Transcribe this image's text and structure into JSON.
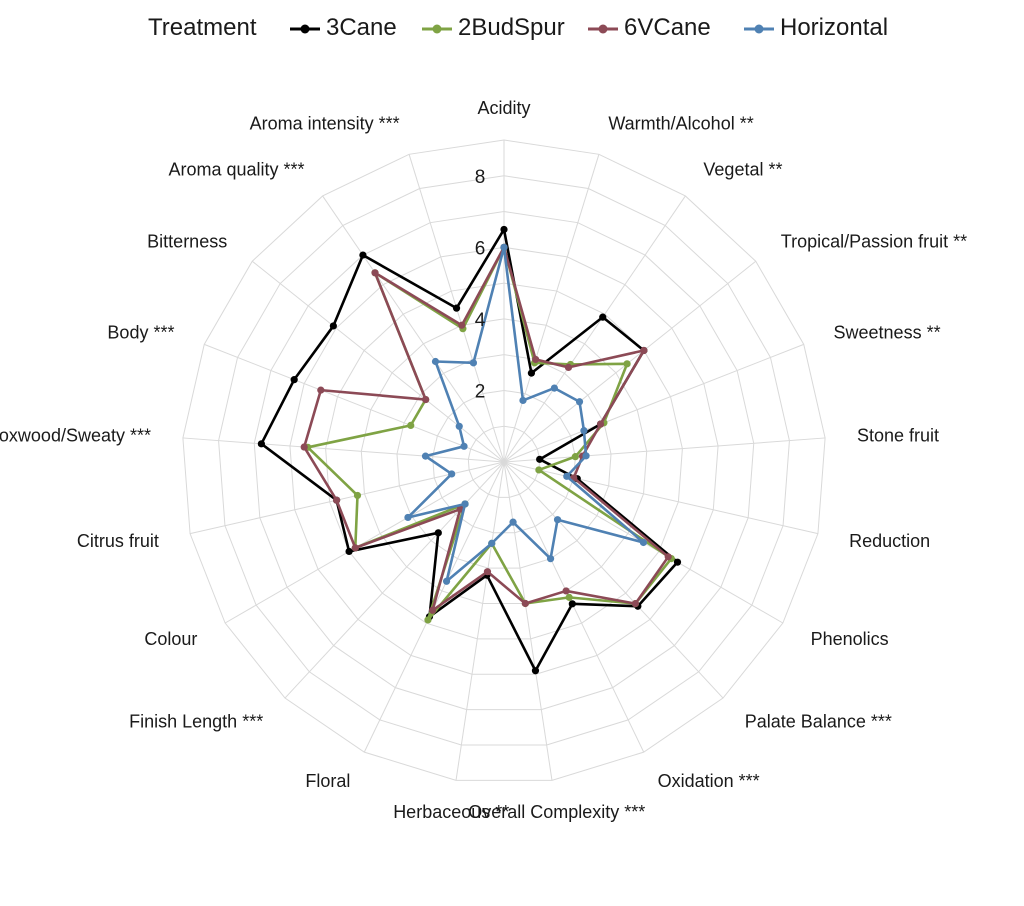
{
  "chart_data": {
    "type": "radar",
    "legend_title": "Treatment",
    "legend_position": "top",
    "axes": [
      "Acidity",
      "Warmth/Alcohol **",
      "Vegetal **",
      "Tropical/Passion fruit **",
      "Sweetness **",
      "Stone fruit",
      "Reduction",
      "Phenolics",
      "Palate Balance ***",
      "Oxidation ***",
      "Overall Complexity ***",
      "Herbaceous **",
      "Floral",
      "Finish Length ***",
      "Colour",
      "Citrus fruit",
      "Boxwood/Sweaty ***",
      "Body ***",
      "Bitterness",
      "Aroma quality ***",
      "Aroma intensity ***"
    ],
    "rlim": [
      0,
      9
    ],
    "ticks": [
      2,
      4,
      6,
      8
    ],
    "grid": true,
    "series": [
      {
        "name": "3Cane",
        "color": "#000000",
        "values": [
          6.5,
          2.6,
          4.9,
          5.0,
          2.9,
          1.0,
          2.1,
          5.6,
          5.5,
          4.4,
          5.9,
          3.2,
          4.8,
          2.7,
          5.0,
          4.8,
          6.8,
          6.3,
          6.1,
          7.0,
          4.5
        ]
      },
      {
        "name": "2BudSpur",
        "color": "#7FA344",
        "values": [
          6.0,
          2.9,
          3.3,
          4.4,
          3.0,
          2.0,
          1.0,
          5.4,
          5.4,
          4.2,
          4.0,
          2.3,
          4.9,
          1.6,
          4.8,
          4.2,
          5.5,
          2.8,
          2.8,
          6.4,
          3.9
        ]
      },
      {
        "name": "6VCane",
        "color": "#8C4A56",
        "values": [
          6.0,
          3.0,
          3.2,
          5.0,
          2.9,
          2.2,
          2.0,
          5.3,
          5.4,
          4.0,
          4.0,
          3.1,
          4.6,
          1.8,
          4.8,
          4.8,
          5.6,
          5.5,
          2.8,
          6.4,
          4.0
        ]
      },
      {
        "name": "Horizontal",
        "color": "#4F81B3",
        "values": [
          6.0,
          1.8,
          2.5,
          2.7,
          2.4,
          2.3,
          1.8,
          4.5,
          2.2,
          3.0,
          1.7,
          2.3,
          3.7,
          1.6,
          3.1,
          1.5,
          2.2,
          1.2,
          1.6,
          3.4,
          2.9
        ]
      }
    ]
  }
}
